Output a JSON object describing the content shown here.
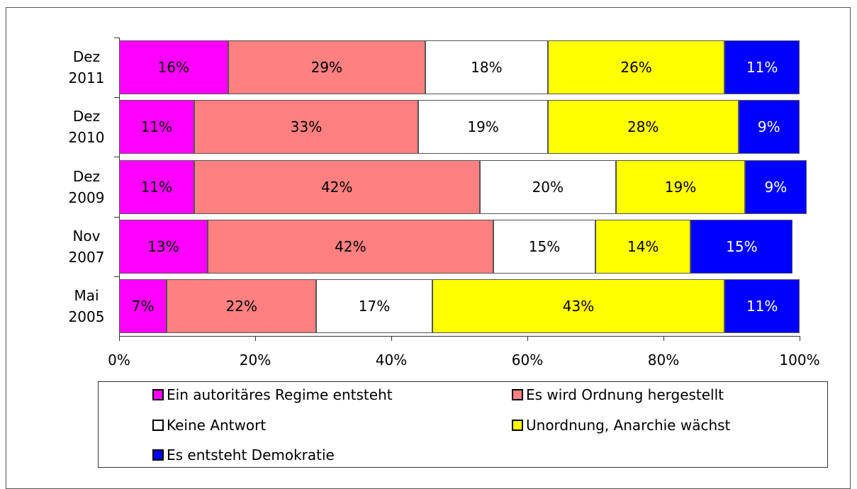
{
  "chart_data": {
    "type": "stacked-bar-horizontal",
    "categories": [
      "Dez 2011",
      "Dez 2010",
      "Dez 2009",
      "Nov 2007",
      "Mai 2005"
    ],
    "series": [
      {
        "name": "Ein autoritäres Regime entsteht",
        "color": "#ff00ff",
        "values": [
          16,
          11,
          11,
          13,
          7
        ],
        "value_labels": [
          "16%",
          "11%",
          "11%",
          "13%",
          "7%"
        ]
      },
      {
        "name": "Es wird Ordnung hergestellt",
        "color": "#ff8080",
        "values": [
          29,
          33,
          42,
          42,
          22
        ],
        "value_labels": [
          "29%",
          "33%",
          "42%",
          "42%",
          "22%"
        ]
      },
      {
        "name": "Keine Antwort",
        "color": "#ffffff",
        "values": [
          18,
          19,
          20,
          15,
          17
        ],
        "value_labels": [
          "18%",
          "19%",
          "20%",
          "15%",
          "17%"
        ]
      },
      {
        "name": "Unordnung, Anarchie wächst",
        "color": "#ffff00",
        "values": [
          26,
          28,
          19,
          14,
          43
        ],
        "value_labels": [
          "26%",
          "28%",
          "19%",
          "14%",
          "43%"
        ]
      },
      {
        "name": "Es entsteht Demokratie",
        "color": "#0000ff",
        "values": [
          11,
          9,
          9,
          15,
          11
        ],
        "value_labels": [
          "11%",
          "9%",
          "9%",
          "15%",
          "11%"
        ]
      }
    ],
    "xlim": [
      0,
      100
    ],
    "xticks": [
      {
        "value": 0,
        "label": "0%"
      },
      {
        "value": 20,
        "label": "20%"
      },
      {
        "value": 40,
        "label": "40%"
      },
      {
        "value": 60,
        "label": "60%"
      },
      {
        "value": 80,
        "label": "80%"
      },
      {
        "value": 100,
        "label": "100%"
      }
    ],
    "legend": "bottom"
  }
}
